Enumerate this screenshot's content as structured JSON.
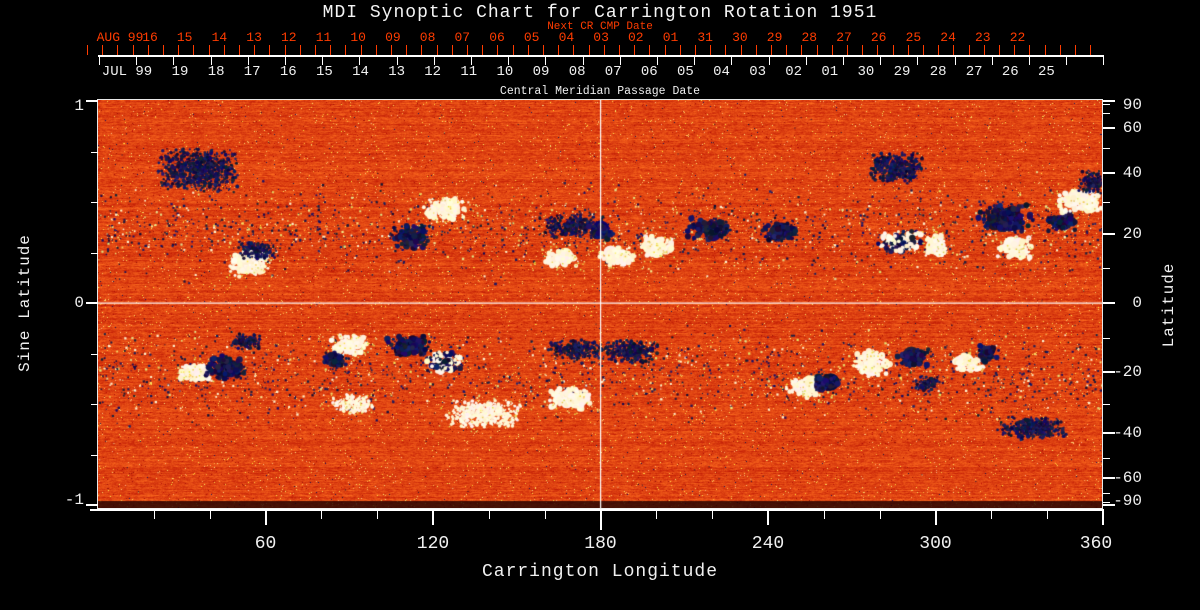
{
  "title": "MDI Synoptic Chart for Carrington Rotation 1951",
  "top_axis": {
    "next_cr_label": "Next CR CMP Date",
    "aug_era": "AUG 99",
    "aug_days": [
      "16",
      "15",
      "14",
      "13",
      "12",
      "11",
      "10",
      "09",
      "08",
      "07",
      "06",
      "05",
      "04",
      "03",
      "02",
      "01",
      "31",
      "30",
      "29",
      "28",
      "27",
      "26",
      "25",
      "24",
      "23",
      "22"
    ],
    "jul_era": "JUL 99",
    "jul_days": [
      "19",
      "18",
      "17",
      "16",
      "15",
      "14",
      "13",
      "12",
      "11",
      "10",
      "09",
      "08",
      "07",
      "06",
      "05",
      "04",
      "03",
      "02",
      "01",
      "30",
      "29",
      "28",
      "27",
      "26",
      "25"
    ],
    "cmp_label": "Central Meridian Passage Date",
    "red_color": "#ff3c00"
  },
  "left_axis": {
    "label": "Sine Latitude",
    "tick_labels": [
      "1",
      "0",
      "-1"
    ],
    "tick_values": [
      1,
      0,
      -1
    ],
    "minor_values": [
      0.75,
      0.5,
      0.25,
      -0.25,
      -0.5,
      -0.75
    ]
  },
  "right_axis": {
    "label": "Latitude",
    "tick_labels": [
      "90",
      "60",
      "40",
      "20",
      "0",
      "-20",
      "-40",
      "-60",
      "-90"
    ],
    "tick_degrees": [
      90,
      60,
      40,
      20,
      0,
      -20,
      -40,
      -60,
      -90
    ],
    "minor_degrees": [
      80,
      70,
      50,
      30,
      10,
      -10,
      -30,
      -50,
      -70,
      -80
    ]
  },
  "bottom_axis": {
    "label": "Carrington Longitude",
    "tick_labels": [
      "60",
      "120",
      "180",
      "240",
      "300",
      "360"
    ],
    "tick_values": [
      60,
      120,
      180,
      240,
      300,
      360
    ],
    "minor_step_deg": 20
  },
  "chart_data": {
    "type": "heatmap",
    "title": "MDI Synoptic Chart for Carrington Rotation 1951",
    "description": "Full-disk solar magnetogram synoptic map for Carrington rotation 1951. Mottled orange-red quiet-sun background noise; dark navy blobs = negative magnetic polarity, white/cream blobs = positive polarity, concentrated in two activity belts near +/-20 deg latitude. White crosshair lines mark longitude 180 and latitude 0.",
    "xlabel": "Carrington Longitude",
    "xlim": [
      0,
      360
    ],
    "ylabel": "Sine Latitude",
    "ylim": [
      -1,
      1
    ],
    "right_ylabel": "Latitude",
    "grid_lines": {
      "longitude": 180,
      "sine_latitude": 0
    },
    "legend": "none",
    "seed": 1951,
    "palette": {
      "quiet_low": "#c01a04",
      "quiet_mid": "#e64312",
      "quiet_high": "#ff6e20",
      "bright_speck": "#ffc860",
      "negative_polarity": "#14143c",
      "positive_polarity": "#fffbe6",
      "halo_speck": "#e0d060",
      "axis_red": "#ff3c00",
      "axis_white": "#f0f0f0",
      "background": "#000000"
    },
    "activity_bands": [
      {
        "sinlat": 0.36,
        "spread": 0.2,
        "count": 1500
      },
      {
        "sinlat": -0.36,
        "spread": 0.2,
        "count": 1500
      }
    ],
    "active_regions": [
      [
        36,
        0.66,
        30,
        0.22,
        "neg-scatter"
      ],
      [
        54,
        0.2,
        16,
        0.14,
        "pos"
      ],
      [
        57,
        0.26,
        14,
        0.1,
        "neg-scatter"
      ],
      [
        112,
        0.33,
        16,
        0.12,
        "neg"
      ],
      [
        124,
        0.46,
        16,
        0.12,
        "pos"
      ],
      [
        170,
        0.38,
        24,
        0.12,
        "neg-scatter"
      ],
      [
        166,
        0.22,
        13,
        0.09,
        "pos"
      ],
      [
        186,
        0.23,
        14,
        0.1,
        "pos"
      ],
      [
        180,
        0.35,
        10,
        0.09,
        "neg"
      ],
      [
        200,
        0.28,
        12,
        0.1,
        "pos"
      ],
      [
        219,
        0.37,
        16,
        0.11,
        "neg"
      ],
      [
        244,
        0.35,
        14,
        0.1,
        "neg"
      ],
      [
        286,
        0.67,
        22,
        0.16,
        "neg-scatter"
      ],
      [
        288,
        0.3,
        18,
        0.12,
        "mixed"
      ],
      [
        300,
        0.28,
        8,
        0.12,
        "pos"
      ],
      [
        325,
        0.42,
        20,
        0.16,
        "neg"
      ],
      [
        329,
        0.27,
        14,
        0.12,
        "pos"
      ],
      [
        345,
        0.4,
        12,
        0.1,
        "neg"
      ],
      [
        352,
        0.5,
        16,
        0.12,
        "pos"
      ],
      [
        356,
        0.6,
        10,
        0.12,
        "neg-scatter"
      ],
      [
        35,
        -0.34,
        14,
        0.1,
        "pos"
      ],
      [
        46,
        -0.32,
        16,
        0.12,
        "neg"
      ],
      [
        53,
        -0.19,
        12,
        0.08,
        "neg-scatter"
      ],
      [
        90,
        -0.21,
        14,
        0.11,
        "pos"
      ],
      [
        85,
        -0.28,
        10,
        0.08,
        "neg"
      ],
      [
        91,
        -0.5,
        16,
        0.1,
        "pos-scatter"
      ],
      [
        111,
        -0.21,
        16,
        0.11,
        "neg"
      ],
      [
        124,
        -0.29,
        14,
        0.11,
        "mixed"
      ],
      [
        138,
        -0.55,
        28,
        0.14,
        "pos-scatter"
      ],
      [
        169,
        -0.47,
        16,
        0.12,
        "pos"
      ],
      [
        171,
        -0.23,
        20,
        0.1,
        "neg-scatter"
      ],
      [
        191,
        -0.24,
        22,
        0.12,
        "neg-scatter"
      ],
      [
        253,
        -0.42,
        14,
        0.1,
        "pos"
      ],
      [
        261,
        -0.4,
        10,
        0.09,
        "neg"
      ],
      [
        277,
        -0.3,
        14,
        0.14,
        "pos"
      ],
      [
        292,
        -0.27,
        12,
        0.1,
        "neg"
      ],
      [
        297,
        -0.4,
        10,
        0.08,
        "neg-scatter"
      ],
      [
        312,
        -0.3,
        12,
        0.1,
        "pos"
      ],
      [
        319,
        -0.25,
        8,
        0.09,
        "neg"
      ],
      [
        335,
        -0.62,
        26,
        0.12,
        "neg-scatter"
      ]
    ]
  }
}
